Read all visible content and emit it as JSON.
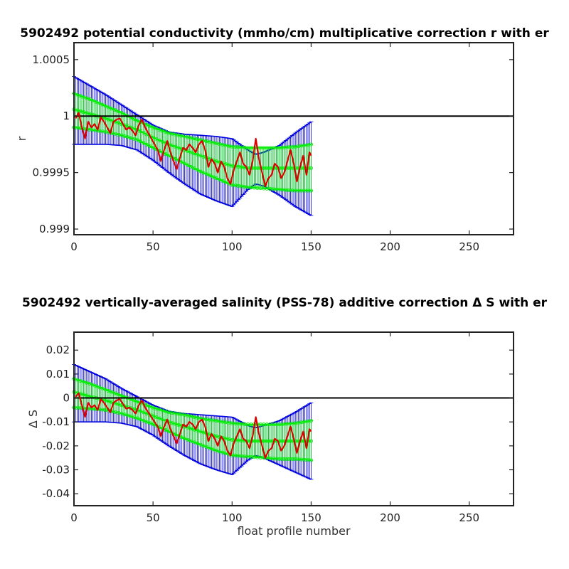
{
  "chart_data": [
    {
      "type": "line",
      "title": "5902492 potential conductivity (mmho/cm) multiplicative correction r with er",
      "xlabel": "",
      "ylabel": "r",
      "xlim": [
        0,
        278
      ],
      "ylim": [
        0.99895,
        1.00065
      ],
      "xticks": [
        0,
        50,
        100,
        150,
        200,
        250
      ],
      "xtick_labels": [
        "0",
        "50",
        "100",
        "150",
        "200",
        "250"
      ],
      "yticks": [
        0.999,
        0.9995,
        1,
        1.0005
      ],
      "ytick_labels": [
        "0.999",
        "0.9995",
        "1",
        "1.0005"
      ],
      "reference_line": 1,
      "grid": false,
      "legend": "none",
      "colors": {
        "measured": "#dd0000",
        "fit": "#00ee00",
        "error": "#0000dd",
        "reference": "#000000"
      },
      "error_band": {
        "name": "",
        "x": [
          0,
          10,
          20,
          30,
          40,
          50,
          60,
          70,
          80,
          90,
          100,
          110,
          115,
          120,
          130,
          140,
          150
        ],
        "upper": [
          1.00035,
          1.00027,
          1.00019,
          1.0001,
          1.00001,
          0.99992,
          0.99986,
          0.99984,
          0.99983,
          0.99982,
          0.9998,
          0.9997,
          0.99966,
          0.99968,
          0.99974,
          0.99985,
          0.99995
        ],
        "lower": [
          0.99975,
          0.99975,
          0.99975,
          0.99974,
          0.9997,
          0.99961,
          0.9995,
          0.9994,
          0.99931,
          0.99925,
          0.9992,
          0.99935,
          0.9994,
          0.99938,
          0.9993,
          0.9992,
          0.99912
        ]
      },
      "fit": {
        "name": "",
        "x": [
          0,
          10,
          20,
          30,
          40,
          50,
          60,
          70,
          80,
          90,
          100,
          110,
          120,
          130,
          140,
          150
        ],
        "center": [
          1.00006,
          1.00002,
          0.99998,
          0.99993,
          0.99988,
          0.99981,
          0.99975,
          0.9997,
          0.99965,
          0.9996,
          0.99956,
          0.99954,
          0.99954,
          0.99954,
          0.99954,
          0.99954
        ],
        "upper": [
          1.0002,
          1.00015,
          1.00009,
          1.00003,
          0.99996,
          0.9999,
          0.99985,
          0.99982,
          0.99979,
          0.99976,
          0.99973,
          0.99972,
          0.99972,
          0.99972,
          0.99973,
          0.99975
        ],
        "lower": [
          0.9999,
          0.99988,
          0.99986,
          0.99983,
          0.99979,
          0.99972,
          0.99965,
          0.99958,
          0.99951,
          0.99945,
          0.99939,
          0.99937,
          0.99936,
          0.99935,
          0.99934,
          0.99934
        ]
      },
      "series": [
        {
          "name": "",
          "x": [
            1,
            3,
            5,
            7,
            9,
            11,
            13,
            15,
            17,
            19,
            21,
            23,
            25,
            27,
            29,
            31,
            33,
            35,
            37,
            39,
            41,
            43,
            45,
            47,
            49,
            51,
            53,
            55,
            57,
            59,
            61,
            63,
            65,
            67,
            69,
            71,
            73,
            75,
            77,
            79,
            81,
            83,
            85,
            87,
            89,
            91,
            93,
            95,
            97,
            99,
            101,
            103,
            105,
            107,
            109,
            111,
            113,
            115,
            117,
            119,
            121,
            123,
            125,
            127,
            129,
            131,
            133,
            135,
            137,
            139,
            141,
            143,
            145,
            147,
            149,
            150
          ],
          "values": [
            0.99998,
            1.00003,
            0.9999,
            0.9998,
            0.99995,
            0.9999,
            0.99993,
            0.99988,
            0.99999,
            0.99995,
            0.9999,
            0.99985,
            0.99995,
            0.99997,
            0.99998,
            0.99993,
            0.99988,
            0.9999,
            0.99987,
            0.99983,
            0.99992,
            0.99997,
            0.9999,
            0.99985,
            0.9998,
            0.99975,
            0.9997,
            0.9996,
            0.9997,
            0.99978,
            0.99968,
            0.9996,
            0.99953,
            0.99963,
            0.99972,
            0.9997,
            0.99975,
            0.99972,
            0.99968,
            0.99975,
            0.99978,
            0.9997,
            0.99955,
            0.99962,
            0.99958,
            0.9995,
            0.9996,
            0.99955,
            0.99945,
            0.9994,
            0.99952,
            0.9996,
            0.99968,
            0.99958,
            0.99955,
            0.99948,
            0.9996,
            0.9998,
            0.99962,
            0.9995,
            0.99938,
            0.99945,
            0.99948,
            0.99958,
            0.99955,
            0.99945,
            0.9995,
            0.9996,
            0.9997,
            0.99958,
            0.99942,
            0.99955,
            0.99965,
            0.99948,
            0.99968,
            0.99965
          ]
        }
      ]
    },
    {
      "type": "line",
      "title": "5902492 vertically-averaged salinity (PSS-78) additive correction Δ S with er",
      "xlabel": "float profile number",
      "ylabel": "Δ S",
      "xlim": [
        0,
        278
      ],
      "ylim": [
        -0.045,
        0.0275
      ],
      "xticks": [
        0,
        50,
        100,
        150,
        200,
        250
      ],
      "xtick_labels": [
        "0",
        "50",
        "100",
        "150",
        "200",
        "250"
      ],
      "yticks": [
        -0.04,
        -0.03,
        -0.02,
        -0.01,
        0,
        0.01,
        0.02
      ],
      "ytick_labels": [
        "-0.04",
        "-0.03",
        "-0.02",
        "-0.01",
        "0",
        "0.01",
        "0.02"
      ],
      "reference_line": 0,
      "grid": false,
      "legend": "none",
      "colors": {
        "measured": "#dd0000",
        "fit": "#00ee00",
        "error": "#0000dd",
        "reference": "#000000"
      },
      "error_band": {
        "name": "",
        "x": [
          0,
          10,
          20,
          30,
          40,
          50,
          60,
          70,
          80,
          90,
          100,
          110,
          115,
          120,
          130,
          140,
          150
        ],
        "upper": [
          0.014,
          0.011,
          0.008,
          0.004,
          0.0005,
          -0.003,
          -0.0055,
          -0.0065,
          -0.007,
          -0.0075,
          -0.008,
          -0.0115,
          -0.0125,
          -0.0115,
          -0.0095,
          -0.006,
          -0.002
        ],
        "lower": [
          -0.01,
          -0.01,
          -0.01,
          -0.0105,
          -0.012,
          -0.0155,
          -0.02,
          -0.024,
          -0.0275,
          -0.03,
          -0.032,
          -0.026,
          -0.024,
          -0.025,
          -0.028,
          -0.031,
          -0.034
        ]
      },
      "fit": {
        "name": "",
        "x": [
          0,
          10,
          20,
          30,
          40,
          50,
          60,
          70,
          80,
          90,
          100,
          110,
          120,
          130,
          140,
          150
        ],
        "center": [
          0.0025,
          0.0007,
          -0.001,
          -0.003,
          -0.005,
          -0.0075,
          -0.01,
          -0.012,
          -0.014,
          -0.016,
          -0.0175,
          -0.018,
          -0.018,
          -0.018,
          -0.018,
          -0.018
        ],
        "upper": [
          0.008,
          0.006,
          0.0035,
          0.001,
          -0.0015,
          -0.004,
          -0.006,
          -0.007,
          -0.0085,
          -0.0095,
          -0.0105,
          -0.011,
          -0.011,
          -0.011,
          -0.0105,
          -0.0095
        ],
        "lower": [
          -0.004,
          -0.0045,
          -0.005,
          -0.0065,
          -0.0085,
          -0.011,
          -0.014,
          -0.017,
          -0.0195,
          -0.022,
          -0.024,
          -0.0245,
          -0.025,
          -0.0255,
          -0.0255,
          -0.026
        ]
      },
      "series": [
        {
          "name": "",
          "x": [
            1,
            3,
            5,
            7,
            9,
            11,
            13,
            15,
            17,
            19,
            21,
            23,
            25,
            27,
            29,
            31,
            33,
            35,
            37,
            39,
            41,
            43,
            45,
            47,
            49,
            51,
            53,
            55,
            57,
            59,
            61,
            63,
            65,
            67,
            69,
            71,
            73,
            75,
            77,
            79,
            81,
            83,
            85,
            87,
            89,
            91,
            93,
            95,
            97,
            99,
            101,
            103,
            105,
            107,
            109,
            111,
            113,
            115,
            117,
            119,
            121,
            123,
            125,
            127,
            129,
            131,
            133,
            135,
            137,
            139,
            141,
            143,
            145,
            147,
            149,
            150
          ],
          "values": [
            0.0005,
            0.002,
            -0.003,
            -0.008,
            -0.002,
            -0.004,
            -0.003,
            -0.005,
            -0.0005,
            -0.002,
            -0.004,
            -0.006,
            -0.002,
            -0.001,
            -0.0005,
            -0.0025,
            -0.0045,
            -0.004,
            -0.005,
            -0.0065,
            -0.003,
            -0.001,
            -0.004,
            -0.006,
            -0.008,
            -0.01,
            -0.012,
            -0.016,
            -0.012,
            -0.009,
            -0.013,
            -0.016,
            -0.019,
            -0.015,
            -0.011,
            -0.012,
            -0.01,
            -0.011,
            -0.013,
            -0.01,
            -0.009,
            -0.012,
            -0.018,
            -0.015,
            -0.017,
            -0.02,
            -0.016,
            -0.018,
            -0.022,
            -0.024,
            -0.019,
            -0.016,
            -0.013,
            -0.017,
            -0.018,
            -0.021,
            -0.016,
            -0.008,
            -0.015,
            -0.02,
            -0.025,
            -0.022,
            -0.021,
            -0.017,
            -0.018,
            -0.022,
            -0.02,
            -0.016,
            -0.012,
            -0.017,
            -0.023,
            -0.018,
            -0.014,
            -0.021,
            -0.013,
            -0.014
          ]
        }
      ]
    }
  ]
}
